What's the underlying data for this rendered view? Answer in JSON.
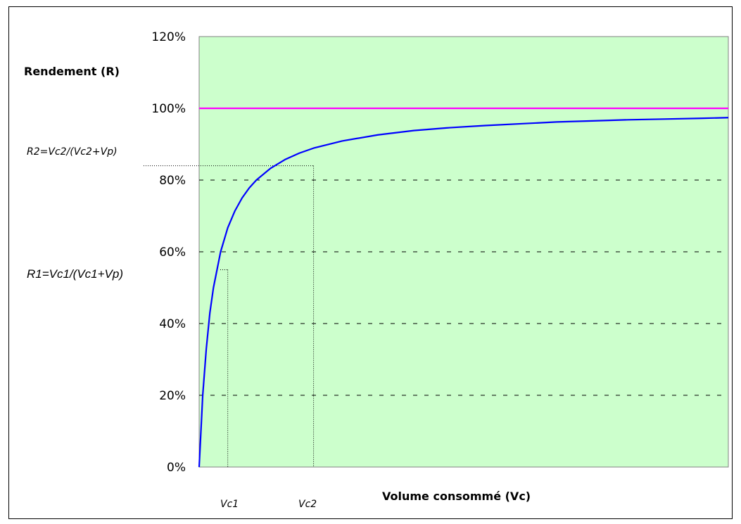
{
  "chart_data": {
    "type": "line",
    "ylabel": "Rendement (R)",
    "xlabel": "Volume consommé (Vc)",
    "ylim": [
      0,
      1.2
    ],
    "y_ticks": [
      "0%",
      "20%",
      "40%",
      "60%",
      "80%",
      "100%",
      "120%"
    ],
    "y_tick_values": [
      0,
      0.2,
      0.4,
      0.6,
      0.8,
      1.0,
      1.2
    ],
    "xlim": [
      0,
      74
    ],
    "grid": "horizontal dashed",
    "series": [
      {
        "color": "#0000ff",
        "x": [
          0,
          0.5,
          1,
          1.5,
          2,
          3,
          4,
          5,
          6,
          7,
          8,
          10,
          12,
          14,
          16,
          20,
          25,
          30,
          35,
          40,
          45,
          50,
          55,
          60,
          65,
          70,
          74
        ],
        "y": [
          0,
          0.2,
          0.33,
          0.43,
          0.5,
          0.6,
          0.667,
          0.714,
          0.75,
          0.778,
          0.8,
          0.833,
          0.857,
          0.875,
          0.889,
          0.909,
          0.926,
          0.938,
          0.946,
          0.952,
          0.957,
          0.962,
          0.965,
          0.968,
          0.97,
          0.972,
          0.974
        ]
      },
      {
        "color": "#ff00ff",
        "x": [
          0,
          74
        ],
        "y": [
          1.0,
          1.0
        ]
      }
    ],
    "markers": [
      {
        "label": "Vc1",
        "x": 4,
        "y": 0.55
      },
      {
        "label": "Vc2",
        "x": 16,
        "y": 0.84
      }
    ]
  },
  "annotations": {
    "r2": "R2=Vc2/(Vc2+Vp)",
    "r1": "R1=Vc1/(Vc1+Vp)",
    "vc1": "Vc1",
    "vc2": "Vc2"
  },
  "colors": {
    "plot_bg": "#ccffcc",
    "curve": "#0000ff",
    "limit": "#ff00ff"
  }
}
